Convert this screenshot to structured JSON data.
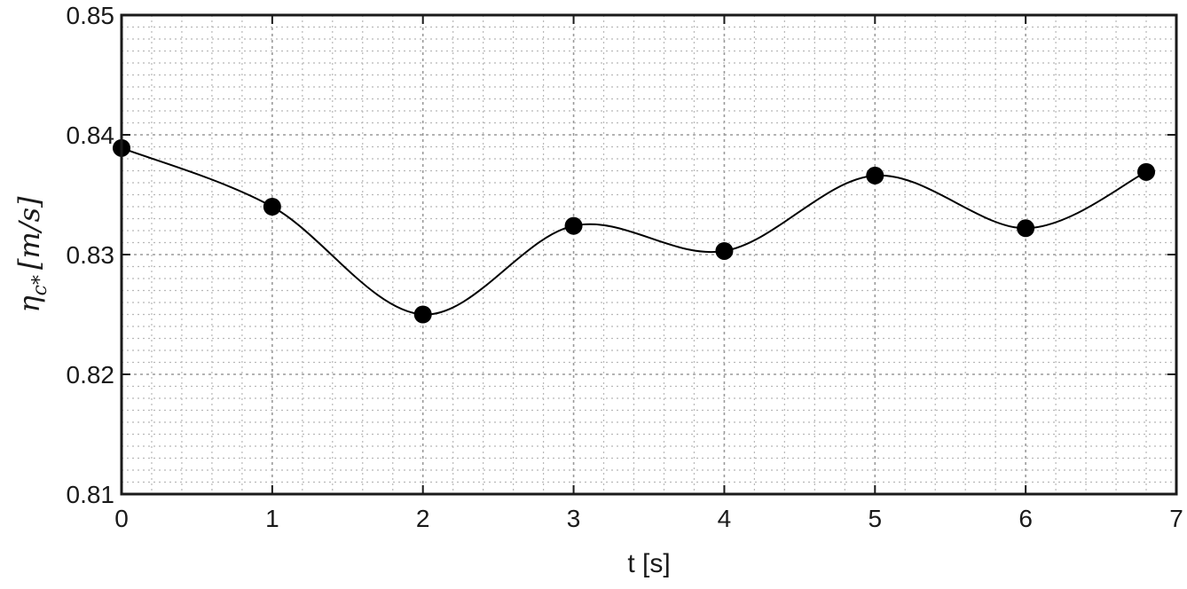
{
  "chart_data": {
    "type": "line",
    "title": "",
    "xlabel": "t [s]",
    "ylabel": "η_c* [m/s]",
    "ylabel_parts": {
      "main": "η",
      "sub": "c*",
      "units": "[m/s]"
    },
    "xlim": [
      0,
      7
    ],
    "ylim": [
      0.81,
      0.85
    ],
    "xticks": [
      0,
      1,
      2,
      3,
      4,
      5,
      6,
      7
    ],
    "yticks": [
      0.81,
      0.82,
      0.83,
      0.84,
      0.85
    ],
    "ytick_labels": [
      "0.81",
      "0.82",
      "0.83",
      "0.84",
      "0.85"
    ],
    "xtick_labels": [
      "0",
      "1",
      "2",
      "3",
      "4",
      "5",
      "6",
      "7"
    ],
    "grid": true,
    "minor_grid": true,
    "series": [
      {
        "x": [
          0,
          1,
          2,
          3,
          4,
          5,
          6,
          6.8
        ],
        "y": [
          0.8389,
          0.834,
          0.825,
          0.8324,
          0.8303,
          0.8366,
          0.8322,
          0.8369
        ],
        "marker": "circle",
        "line": "smooth",
        "color": "#000000"
      }
    ]
  }
}
